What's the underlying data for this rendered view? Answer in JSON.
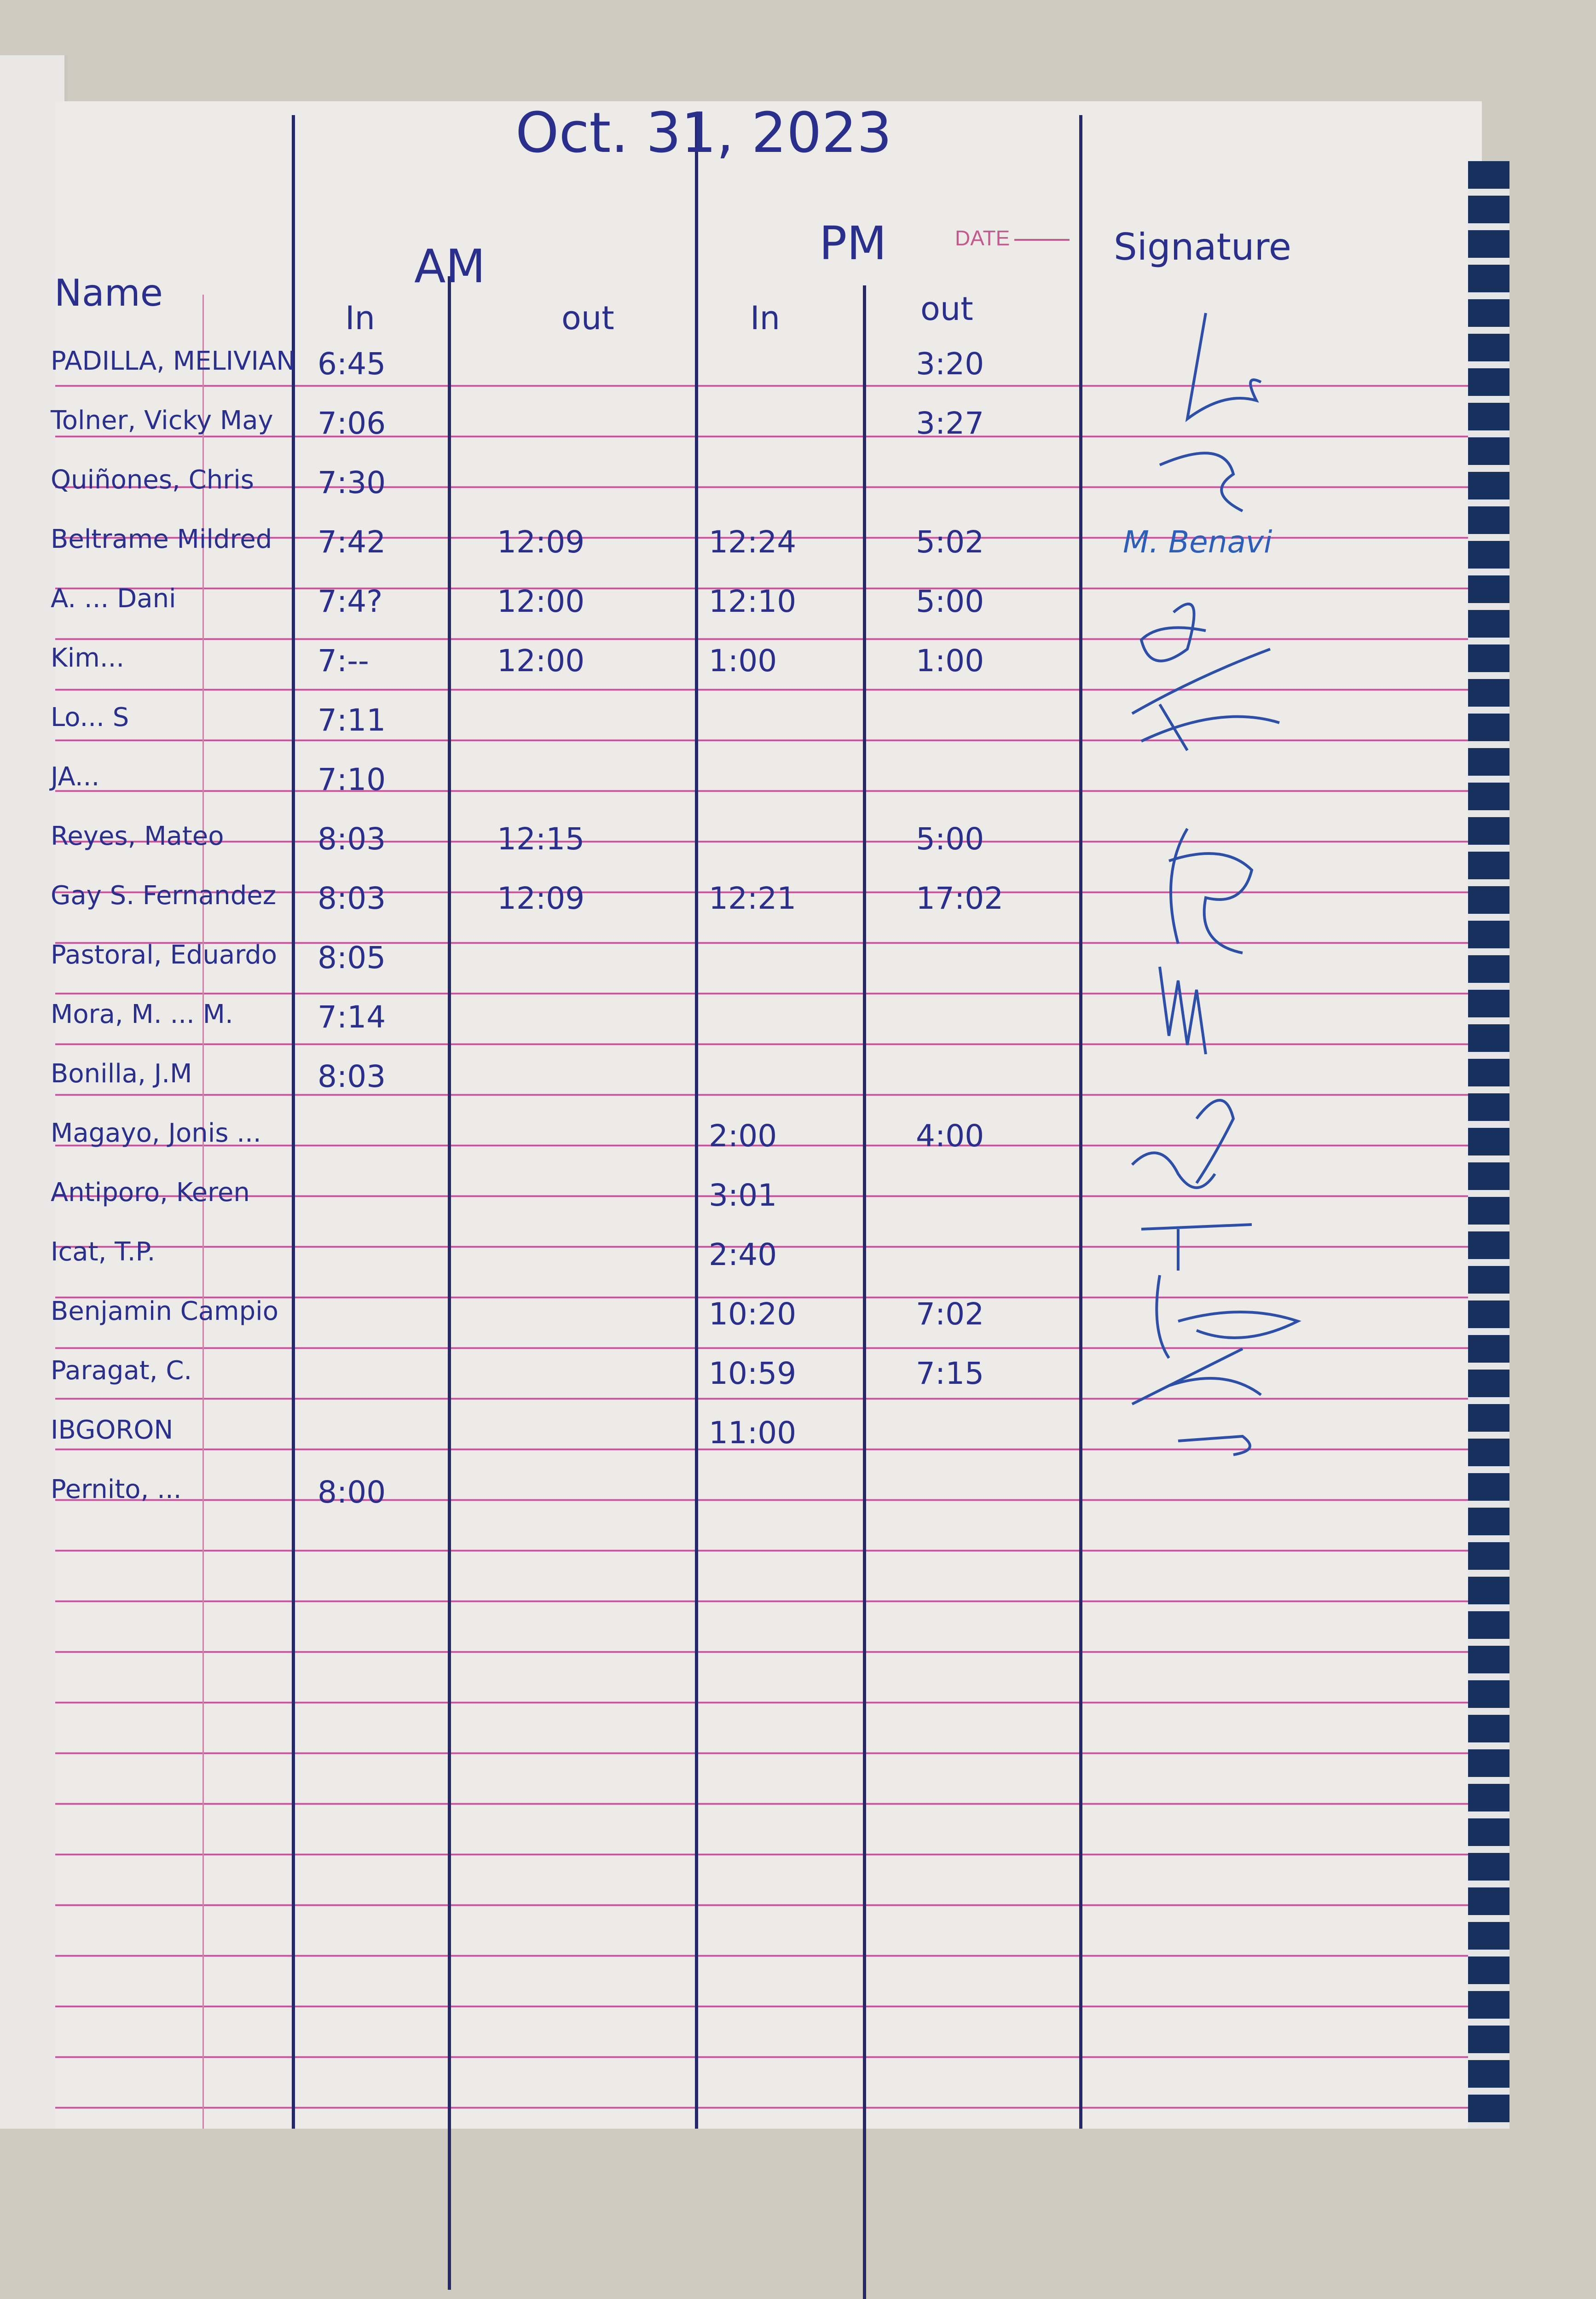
{
  "header": {
    "date": "Oct. 31, 2023",
    "am_label": "AM",
    "pm_label": "PM",
    "printed_date_label": "DATE",
    "signature_label": "Signature",
    "name_label": "Name",
    "columns": [
      "In",
      "out",
      "In",
      "out"
    ]
  },
  "rows": [
    {
      "name": "PADILLA, MELIVIAN",
      "am_in": "6:45",
      "am_out": "",
      "pm_in": "",
      "pm_out": "3:20",
      "signature": ""
    },
    {
      "name": "Tolner, Vicky May",
      "am_in": "7:06",
      "am_out": "",
      "pm_in": "",
      "pm_out": "3:27",
      "signature": ""
    },
    {
      "name": "Quiñones, Chris",
      "am_in": "7:30",
      "am_out": "",
      "pm_in": "",
      "pm_out": "",
      "signature": ""
    },
    {
      "name": "Beltrame Mildred",
      "am_in": "7:42",
      "am_out": "12:09",
      "pm_in": "12:24",
      "pm_out": "5:02",
      "signature": "M. Benavi"
    },
    {
      "name": "A. ... Dani",
      "am_in": "7:4?",
      "am_out": "12:00",
      "pm_in": "12:10",
      "pm_out": "5:00",
      "signature": ""
    },
    {
      "name": "Kim...",
      "am_in": "7:--",
      "am_out": "12:00",
      "pm_in": "1:00",
      "pm_out": "1:00",
      "signature": ""
    },
    {
      "name": "Lo... S",
      "am_in": "7:11",
      "am_out": "",
      "pm_in": "",
      "pm_out": "",
      "signature": ""
    },
    {
      "name": "JA...",
      "am_in": "7:10",
      "am_out": "",
      "pm_in": "",
      "pm_out": "",
      "signature": ""
    },
    {
      "name": "Reyes, Mateo",
      "am_in": "8:03",
      "am_out": "12:15",
      "pm_in": "",
      "pm_out": "5:00",
      "signature": ""
    },
    {
      "name": "Gay S. Fernandez",
      "am_in": "8:03",
      "am_out": "12:09",
      "pm_in": "12:21",
      "pm_out": "17:02",
      "signature": ""
    },
    {
      "name": "Pastoral, Eduardo",
      "am_in": "8:05",
      "am_out": "",
      "pm_in": "",
      "pm_out": "",
      "signature": ""
    },
    {
      "name": "Mora, M. ... M.",
      "am_in": "7:14",
      "am_out": "",
      "pm_in": "",
      "pm_out": "",
      "signature": ""
    },
    {
      "name": "Bonilla, J.M",
      "am_in": "8:03",
      "am_out": "",
      "pm_in": "",
      "pm_out": "",
      "signature": ""
    },
    {
      "name": "Magayo, Jonis ...",
      "am_in": "",
      "am_out": "",
      "pm_in": "2:00",
      "pm_out": "4:00",
      "signature": ""
    },
    {
      "name": "Antiporo, Keren",
      "am_in": "",
      "am_out": "",
      "pm_in": "3:01",
      "pm_out": "",
      "signature": ""
    },
    {
      "name": "Icat, T.P.",
      "am_in": "",
      "am_out": "",
      "pm_in": "2:40",
      "pm_out": "",
      "signature": ""
    },
    {
      "name": "Benjamin Campio",
      "am_in": "",
      "am_out": "",
      "pm_in": "10:20",
      "pm_out": "7:02",
      "signature": ""
    },
    {
      "name": "Paragat, C.",
      "am_in": "",
      "am_out": "",
      "pm_in": "10:59",
      "pm_out": "7:15",
      "signature": ""
    },
    {
      "name": "IBGORON",
      "am_in": "",
      "am_out": "",
      "pm_in": "11:00",
      "pm_out": "",
      "signature": ""
    },
    {
      "name": "Pernito, ...",
      "am_in": "8:00",
      "am_out": "",
      "pm_in": "",
      "pm_out": "",
      "signature": ""
    }
  ],
  "colors": {
    "ink": "#2a2f8c",
    "rule": "#c9469b",
    "paper": "#ecebe8"
  }
}
